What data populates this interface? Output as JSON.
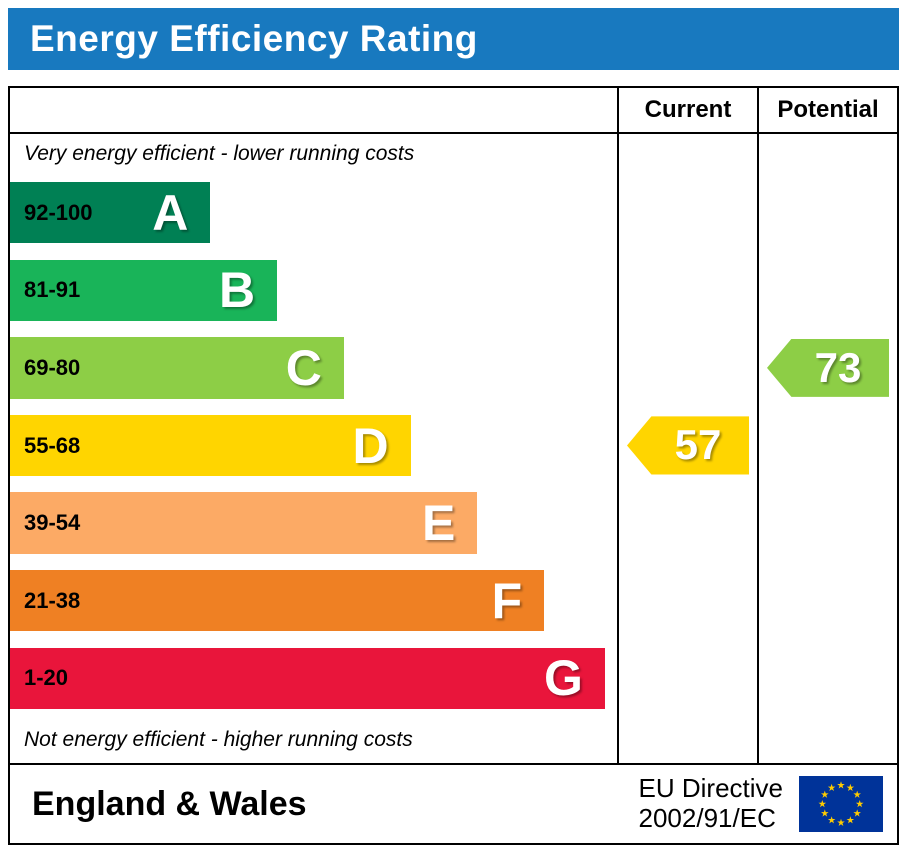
{
  "title": "Energy Efficiency Rating",
  "header": {
    "current_label": "Current",
    "potential_label": "Potential"
  },
  "notes": {
    "top": "Very energy efficient - lower running costs",
    "bottom": "Not energy efficient - higher running costs"
  },
  "bands": [
    {
      "letter": "A",
      "range": "92-100",
      "color": "#008054",
      "width_pct": 33
    },
    {
      "letter": "B",
      "range": "81-91",
      "color": "#19b459",
      "width_pct": 44
    },
    {
      "letter": "C",
      "range": "69-80",
      "color": "#8dce46",
      "width_pct": 55
    },
    {
      "letter": "D",
      "range": "55-68",
      "color": "#ffd500",
      "width_pct": 66
    },
    {
      "letter": "E",
      "range": "39-54",
      "color": "#fcaa65",
      "width_pct": 77
    },
    {
      "letter": "F",
      "range": "21-38",
      "color": "#ef8023",
      "width_pct": 88
    },
    {
      "letter": "G",
      "range": "1-20",
      "color": "#e9153b",
      "width_pct": 98
    }
  ],
  "current": {
    "value": "57",
    "band": "D"
  },
  "potential": {
    "value": "73",
    "band": "C"
  },
  "footer": {
    "region": "England & Wales",
    "directive_line1": "EU Directive",
    "directive_line2": "2002/91/EC",
    "flag_icon": "eu-flag"
  },
  "colors": {
    "title_bar": "#1879bf",
    "eu_flag_blue": "#003399",
    "eu_flag_star": "#ffcc00"
  },
  "chart_data": {
    "type": "bar",
    "orientation": "horizontal",
    "title": "Energy Efficiency Rating",
    "categories": [
      "A",
      "B",
      "C",
      "D",
      "E",
      "F",
      "G"
    ],
    "band_score_ranges": [
      "92-100",
      "81-91",
      "69-80",
      "55-68",
      "39-54",
      "21-38",
      "1-20"
    ],
    "band_colors": [
      "#008054",
      "#19b459",
      "#8dce46",
      "#ffd500",
      "#fcaa65",
      "#ef8023",
      "#e9153b"
    ],
    "bar_relative_widths_pct": [
      33,
      44,
      55,
      66,
      77,
      88,
      98
    ],
    "markers": [
      {
        "name": "Current",
        "value": 57,
        "band": "D"
      },
      {
        "name": "Potential",
        "value": 73,
        "band": "C"
      }
    ],
    "annotations": [
      "Very energy efficient - lower running costs",
      "Not energy efficient - higher running costs"
    ],
    "legend_position": "none",
    "grid": false
  }
}
